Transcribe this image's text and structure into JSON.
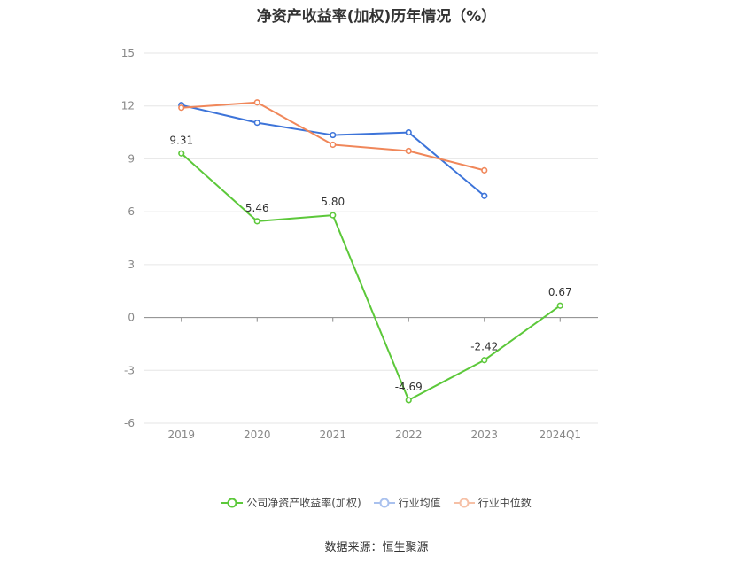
{
  "chart_data": {
    "type": "line",
    "title": "净资产收益率(加权)历年情况（%）",
    "categories": [
      "2019",
      "2020",
      "2021",
      "2022",
      "2023",
      "2024Q1"
    ],
    "ylim": [
      -6,
      15
    ],
    "yticks": [
      -6,
      -3,
      0,
      3,
      6,
      9,
      12,
      15
    ],
    "grid": true,
    "legend_position": "bottom",
    "series": [
      {
        "name": "公司净资产收益率(加权)",
        "color": "#5cc83a",
        "values": [
          9.31,
          5.46,
          5.8,
          -4.69,
          -2.42,
          0.67
        ],
        "labels": [
          "9.31",
          "5.46",
          "5.80",
          "-4.69",
          "-2.42",
          "0.67"
        ]
      },
      {
        "name": "行业均值",
        "color": "#3d74d9",
        "values": [
          12.05,
          11.05,
          10.35,
          10.5,
          6.9,
          null
        ]
      },
      {
        "name": "行业中位数",
        "color": "#f0875a",
        "values": [
          11.9,
          12.2,
          9.8,
          9.45,
          8.35,
          null
        ]
      }
    ]
  },
  "source": "数据来源：恒生聚源"
}
